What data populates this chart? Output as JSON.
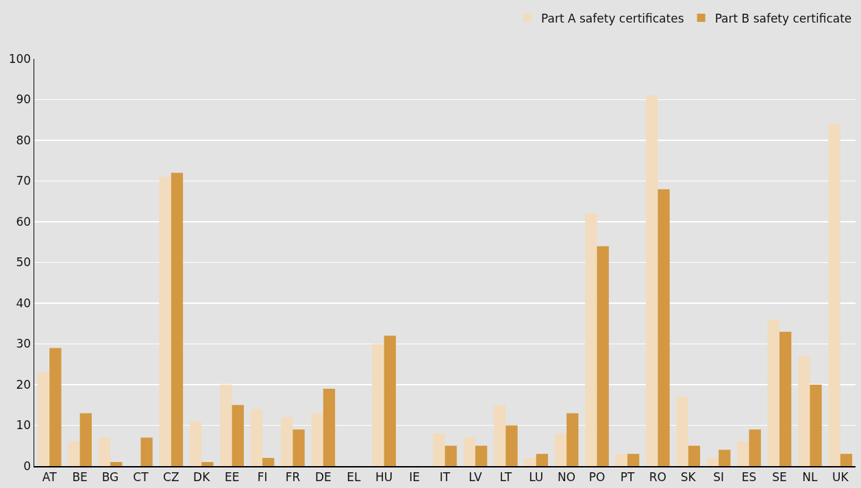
{
  "chart_data": {
    "type": "bar",
    "categories": [
      "AT",
      "BE",
      "BG",
      "CT",
      "CZ",
      "DK",
      "EE",
      "FI",
      "FR",
      "DE",
      "EL",
      "HU",
      "IE",
      "IT",
      "LV",
      "LT",
      "LU",
      "NO",
      "PO",
      "PT",
      "RO",
      "SK",
      "SI",
      "ES",
      "SE",
      "NL",
      "UK"
    ],
    "series": [
      {
        "name": "Part A safety certificates",
        "color": "#f2dcbd",
        "values": [
          23,
          6,
          7,
          0,
          71,
          11,
          20,
          14,
          12,
          13,
          0,
          30,
          0,
          8,
          7,
          15,
          2,
          8,
          62,
          3,
          91,
          17,
          2,
          6,
          36,
          27,
          84
        ]
      },
      {
        "name": "Part B safety certificate",
        "color": "#d39841",
        "values": [
          29,
          13,
          1,
          7,
          72,
          1,
          15,
          2,
          9,
          19,
          0,
          32,
          0,
          5,
          5,
          10,
          3,
          13,
          54,
          3,
          68,
          5,
          4,
          9,
          33,
          20,
          3
        ]
      }
    ],
    "ylim": [
      0,
      100
    ],
    "yticks": [
      0,
      10,
      20,
      30,
      40,
      50,
      60,
      70,
      80,
      90,
      100
    ],
    "grid": "y",
    "legend": "top right"
  }
}
